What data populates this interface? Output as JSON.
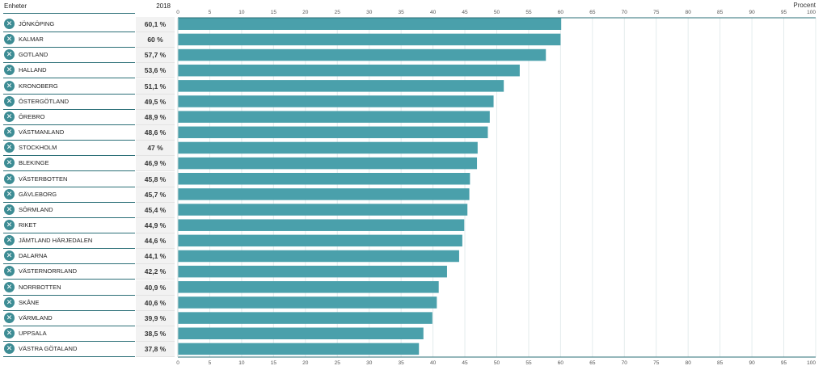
{
  "header": {
    "units_label": "Enheter",
    "year_label": "2018"
  },
  "colors": {
    "bar": "#4aa0ab",
    "accent": "#3d8c94",
    "line": "#2b6f77",
    "value_bg": "#f2f2f2"
  },
  "icons": {
    "remove": "close-icon"
  },
  "rows": [
    {
      "name": "JÖNKÖPING",
      "value_text": "60,1 %"
    },
    {
      "name": "KALMAR",
      "value_text": "60 %"
    },
    {
      "name": "GOTLAND",
      "value_text": "57,7 %"
    },
    {
      "name": "HALLAND",
      "value_text": "53,6 %"
    },
    {
      "name": "KRONOBERG",
      "value_text": "51,1 %"
    },
    {
      "name": "ÖSTERGÖTLAND",
      "value_text": "49,5 %"
    },
    {
      "name": "ÖREBRO",
      "value_text": "48,9 %"
    },
    {
      "name": "VÄSTMANLAND",
      "value_text": "48,6 %"
    },
    {
      "name": "STOCKHOLM",
      "value_text": "47 %"
    },
    {
      "name": "BLEKINGE",
      "value_text": "46,9 %"
    },
    {
      "name": "VÄSTERBOTTEN",
      "value_text": "45,8 %"
    },
    {
      "name": "GÄVLEBORG",
      "value_text": "45,7 %"
    },
    {
      "name": "SÖRMLAND",
      "value_text": "45,4 %"
    },
    {
      "name": "RIKET",
      "value_text": "44,9 %"
    },
    {
      "name": "JÄMTLAND HÄRJEDALEN",
      "value_text": "44,6 %"
    },
    {
      "name": "DALARNA",
      "value_text": "44,1 %"
    },
    {
      "name": "VÄSTERNORRLAND",
      "value_text": "42,2 %"
    },
    {
      "name": "NORRBOTTEN",
      "value_text": "40,9 %"
    },
    {
      "name": "SKÅNE",
      "value_text": "40,6 %"
    },
    {
      "name": "VÄRMLAND",
      "value_text": "39,9 %"
    },
    {
      "name": "UPPSALA",
      "value_text": "38,5 %"
    },
    {
      "name": "VÄSTRA GÖTALAND",
      "value_text": "37,8 %"
    }
  ],
  "chart_data": {
    "type": "bar",
    "orientation": "horizontal",
    "axis_unit_label": "Procent",
    "xlim": [
      0,
      100
    ],
    "ticks": [
      0,
      5,
      10,
      15,
      20,
      25,
      30,
      35,
      40,
      45,
      50,
      55,
      60,
      65,
      70,
      75,
      80,
      85,
      90,
      95,
      100
    ],
    "grid": true,
    "categories": [
      "JÖNKÖPING",
      "KALMAR",
      "GOTLAND",
      "HALLAND",
      "KRONOBERG",
      "ÖSTERGÖTLAND",
      "ÖREBRO",
      "VÄSTMANLAND",
      "STOCKHOLM",
      "BLEKINGE",
      "VÄSTERBOTTEN",
      "GÄVLEBORG",
      "SÖRMLAND",
      "RIKET",
      "JÄMTLAND HÄRJEDALEN",
      "DALARNA",
      "VÄSTERNORRLAND",
      "NORRBOTTEN",
      "SKÅNE",
      "VÄRMLAND",
      "UPPSALA",
      "VÄSTRA GÖTALAND"
    ],
    "values": [
      60.1,
      60,
      57.7,
      53.6,
      51.1,
      49.5,
      48.9,
      48.6,
      47,
      46.9,
      45.8,
      45.7,
      45.4,
      44.9,
      44.6,
      44.1,
      42.2,
      40.9,
      40.6,
      39.9,
      38.5,
      37.8
    ]
  }
}
